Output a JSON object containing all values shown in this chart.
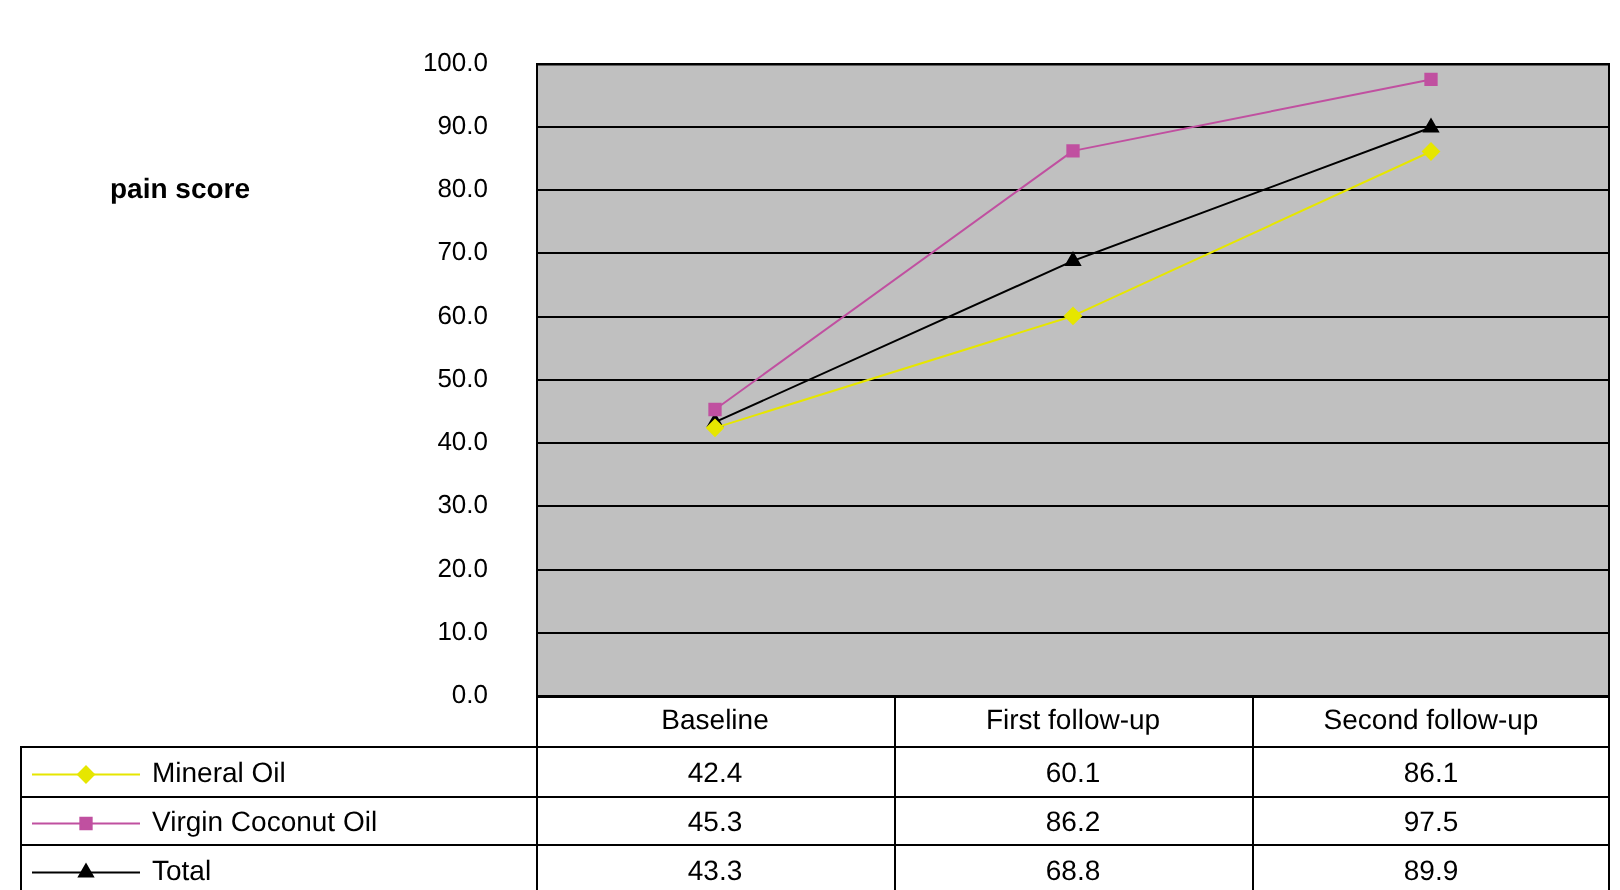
{
  "chart_data": {
    "type": "line",
    "annotations": [
      "pain score"
    ],
    "categories": [
      "Baseline",
      "First follow-up",
      "Second follow-up"
    ],
    "series": [
      {
        "name": "Mineral Oil",
        "color": "#e6e600",
        "marker": "diamond",
        "values": [
          42.4,
          60.1,
          86.1
        ]
      },
      {
        "name": "Virgin Coconut Oil",
        "color": "#c050a0",
        "marker": "square",
        "values": [
          45.3,
          86.2,
          97.5
        ]
      },
      {
        "name": "Total",
        "color": "#000000",
        "marker": "triangle",
        "values": [
          43.3,
          68.8,
          89.9
        ]
      }
    ],
    "ylim": [
      0,
      100
    ],
    "yticks": [
      {
        "value": 0,
        "label": "0.0"
      },
      {
        "value": 10,
        "label": "10.0"
      },
      {
        "value": 20,
        "label": "20.0"
      },
      {
        "value": 30,
        "label": "30.0"
      },
      {
        "value": 40,
        "label": "40.0"
      },
      {
        "value": 50,
        "label": "50.0"
      },
      {
        "value": 60,
        "label": "60.0"
      },
      {
        "value": 70,
        "label": "70.0"
      },
      {
        "value": 80,
        "label": "80.0"
      },
      {
        "value": 90,
        "label": "90.0"
      },
      {
        "value": 100,
        "label": "100.0"
      }
    ],
    "grid": "y",
    "legend": "bottom",
    "data_labels": true
  }
}
